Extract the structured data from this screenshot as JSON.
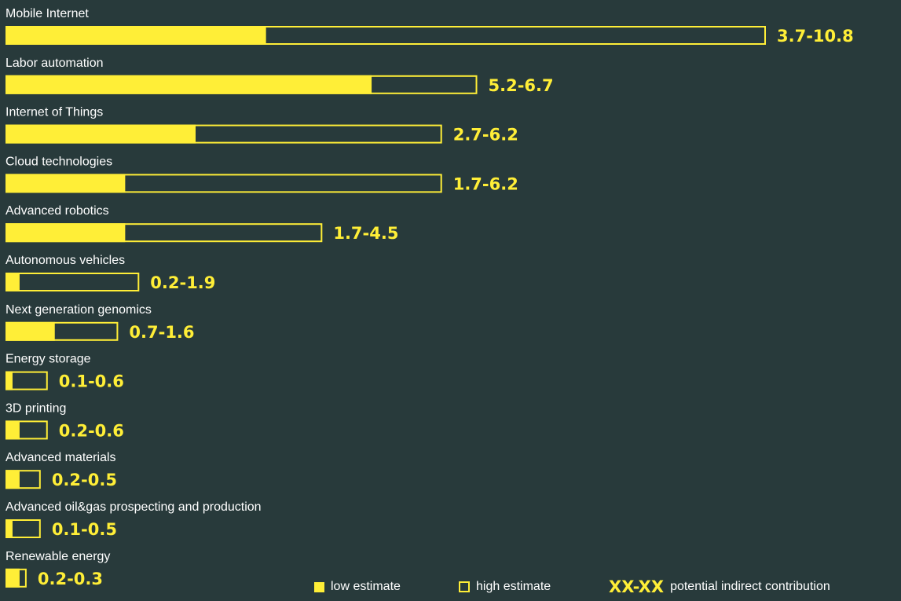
{
  "chart_data": {
    "type": "bar",
    "categories": [
      "Mobile Internet",
      "Labor automation",
      "Internet of Things",
      "Cloud technologies",
      "Advanced robotics",
      "Autonomous vehicles",
      "Next generation genomics",
      "Energy storage",
      "3D printing",
      "Advanced materials",
      "Advanced oil&gas prospecting and production",
      "Renewable energy"
    ],
    "series": [
      {
        "name": "low estimate",
        "values": [
          3.7,
          5.2,
          2.7,
          1.7,
          1.7,
          0.2,
          0.7,
          0.1,
          0.2,
          0.2,
          0.1,
          0.2
        ]
      },
      {
        "name": "high estimate",
        "values": [
          10.8,
          6.7,
          6.2,
          6.2,
          4.5,
          1.9,
          1.6,
          0.6,
          0.6,
          0.5,
          0.5,
          0.3
        ]
      }
    ],
    "range_labels": [
      "3.7-10.8",
      "5.2-6.7",
      "2.7-6.2",
      "1.7-6.2",
      "1.7-4.5",
      "0.2-1.9",
      "0.7-1.6",
      "0.1-0.6",
      "0.2-0.6",
      "0.2-0.5",
      "0.1-0.5",
      "0.2-0.3"
    ],
    "orientation": "horizontal",
    "grid": false,
    "legend_position": "bottom-right"
  },
  "legend": {
    "low_label": "low estimate",
    "high_label": "high estimate",
    "range_symbol": "XX-XX",
    "range_label": "potential indirect contribution"
  },
  "colors": {
    "background": "#283a3b",
    "bar_fill": "#ffee37",
    "bar_outline": "#ffee37",
    "text": "#ffffff",
    "range_text": "#ffee37"
  }
}
